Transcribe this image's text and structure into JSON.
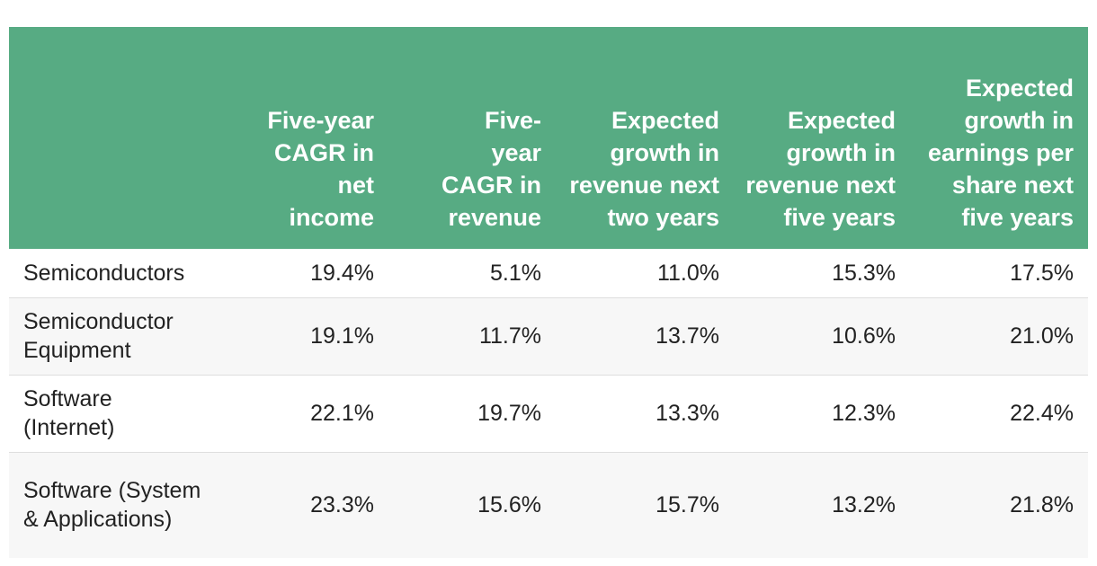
{
  "chart_data": {
    "type": "table",
    "columns": [
      "",
      "Five-year CAGR in net income",
      "Five-year CAGR in revenue",
      "Expected growth in revenue next two years",
      "Expected growth in revenue next five years",
      "Expected growth in earnings per share next five years"
    ],
    "rows": [
      {
        "label": "Semiconductors",
        "values": [
          "19.4%",
          "5.1%",
          "11.0%",
          "15.3%",
          "17.5%"
        ]
      },
      {
        "label": "Semiconductor Equipment",
        "values": [
          "19.1%",
          "11.7%",
          "13.7%",
          "10.6%",
          "21.0%"
        ]
      },
      {
        "label": "Software (Internet)",
        "values": [
          "22.1%",
          "19.7%",
          "13.3%",
          "12.3%",
          "22.4%"
        ]
      },
      {
        "label": "Software (System & Applications)",
        "values": [
          "23.3%",
          "15.6%",
          "15.7%",
          "13.2%",
          "21.8%"
        ]
      }
    ]
  },
  "colors": {
    "header_background": "#57ab83",
    "header_text": "#ffffff",
    "body_text": "#222222",
    "row_alt_background": "#f7f7f7",
    "row_divider": "#dedede"
  }
}
